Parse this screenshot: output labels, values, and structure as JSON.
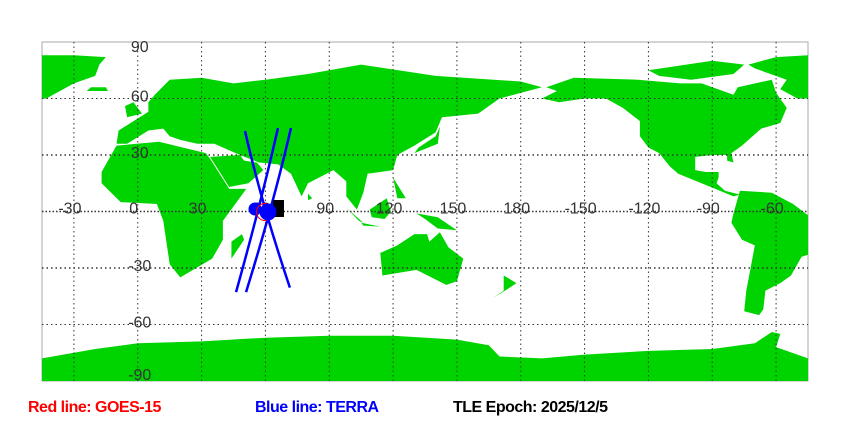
{
  "map": {
    "projection": "equirectangular",
    "center_longitude": 135,
    "land_color": "#00d400",
    "ocean_color": "#ffffff",
    "grid": true,
    "lon_labels": [
      "-30",
      "0",
      "30",
      "60",
      "90",
      "120",
      "150",
      "180",
      "-150",
      "-120",
      "-90",
      "-60"
    ],
    "lat_labels": [
      "90",
      "60",
      "30",
      "-30",
      "-60",
      "-90"
    ]
  },
  "satellites": {
    "red": {
      "name": "GOES-15",
      "color": "#ff0000"
    },
    "blue": {
      "name": "TERRA",
      "color": "#0000ff"
    }
  },
  "legend": {
    "red_label": "Red line: GOES-15",
    "blue_label": "Blue line: TERRA",
    "epoch_label": "TLE Epoch: 2025/12/5"
  }
}
